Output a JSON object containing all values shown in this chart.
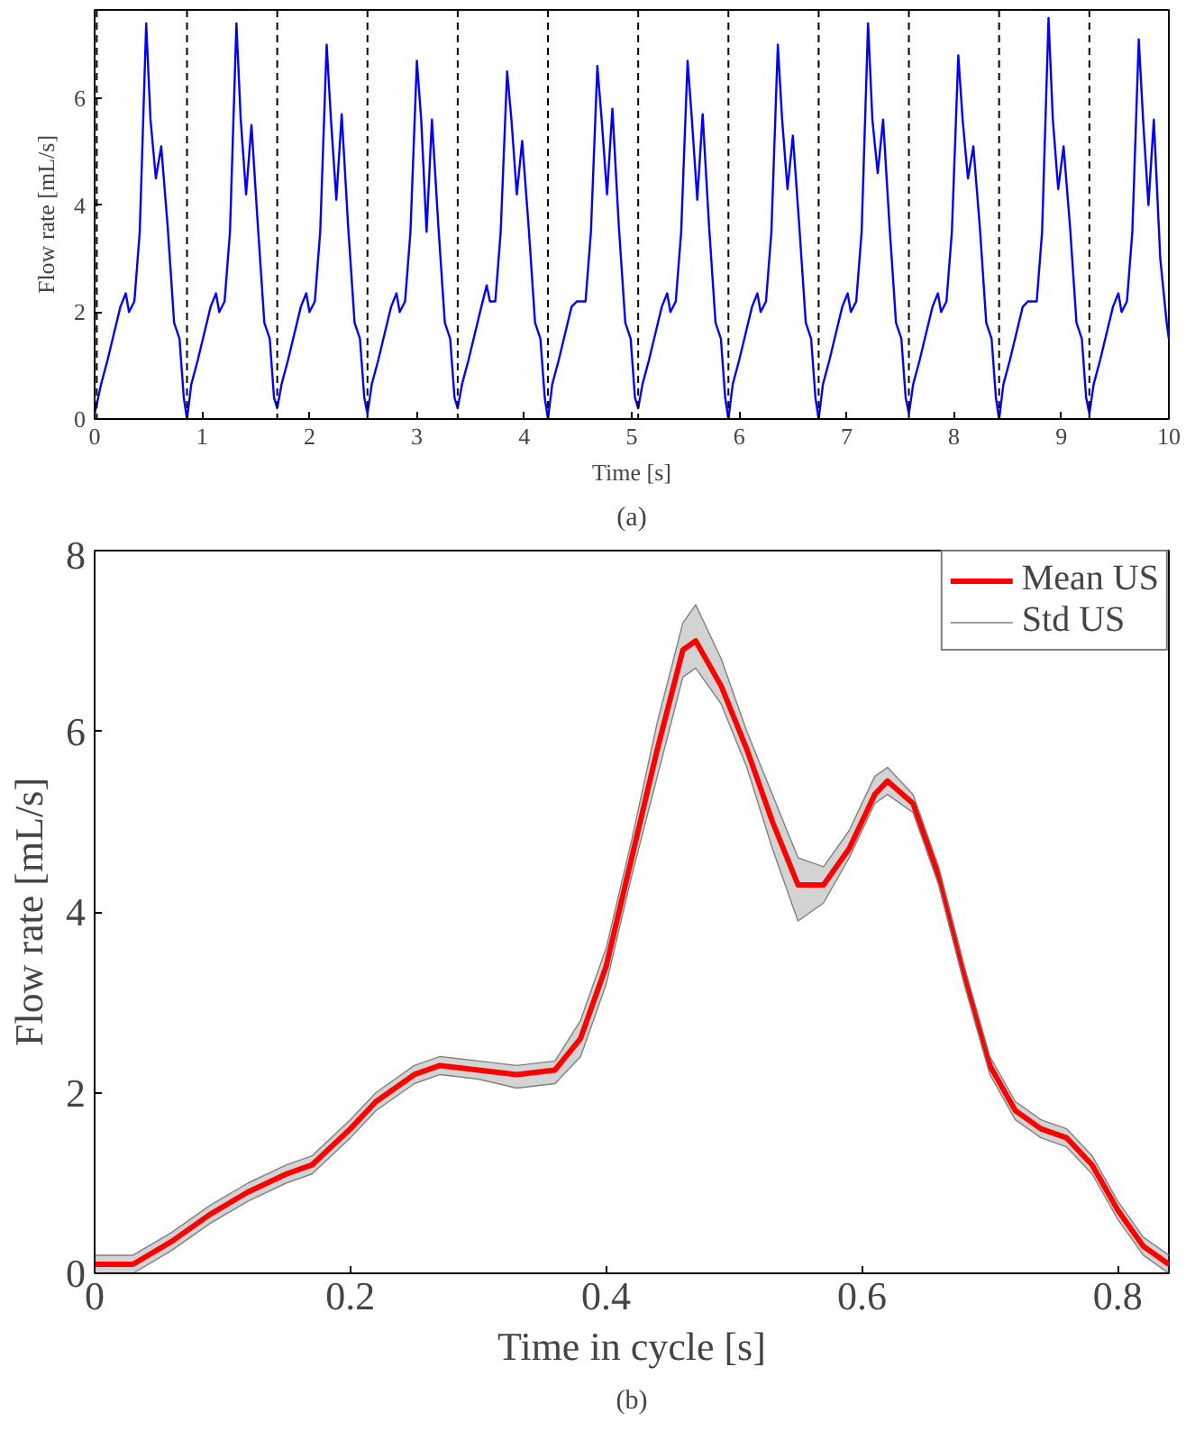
{
  "chart_data": [
    {
      "type": "line",
      "xlabel": "Time [s]",
      "ylabel": "Flow rate [mL/s]",
      "xlim": [
        0,
        10
      ],
      "ylim": [
        0,
        7.65
      ],
      "xticks": [
        0,
        1,
        2,
        3,
        4,
        5,
        6,
        7,
        8,
        9,
        10
      ],
      "yticks": [
        0,
        2,
        4,
        6
      ],
      "grid": false,
      "legend": false,
      "annotations": [
        "(a)"
      ],
      "ref_lines": [
        {
          "axis": "x",
          "value": 0.02,
          "line_style": "dashed",
          "color": "#000000"
        },
        {
          "axis": "x",
          "value": 0.86,
          "line_style": "dashed",
          "color": "#000000"
        },
        {
          "axis": "x",
          "value": 1.7,
          "line_style": "dashed",
          "color": "#000000"
        },
        {
          "axis": "x",
          "value": 2.54,
          "line_style": "dashed",
          "color": "#000000"
        },
        {
          "axis": "x",
          "value": 3.38,
          "line_style": "dashed",
          "color": "#000000"
        },
        {
          "axis": "x",
          "value": 4.22,
          "line_style": "dashed",
          "color": "#000000"
        },
        {
          "axis": "x",
          "value": 5.06,
          "line_style": "dashed",
          "color": "#000000"
        },
        {
          "axis": "x",
          "value": 5.9,
          "line_style": "dashed",
          "color": "#000000"
        },
        {
          "axis": "x",
          "value": 6.74,
          "line_style": "dashed",
          "color": "#000000"
        },
        {
          "axis": "x",
          "value": 7.58,
          "line_style": "dashed",
          "color": "#000000"
        },
        {
          "axis": "x",
          "value": 8.42,
          "line_style": "dashed",
          "color": "#000000"
        },
        {
          "axis": "x",
          "value": 9.26,
          "line_style": "dashed",
          "color": "#000000"
        }
      ],
      "series": [
        {
          "color": "#0000ff",
          "x": [
            0,
            0.06,
            0.12,
            0.18,
            0.24,
            0.29,
            0.32,
            0.37,
            0.42,
            0.48,
            0.52,
            0.57,
            0.62,
            0.68,
            0.74,
            0.79,
            0.83,
            0.86,
            0.9,
            0.96,
            1.02,
            1.08,
            1.13,
            1.16,
            1.21,
            1.26,
            1.32,
            1.36,
            1.41,
            1.46,
            1.52,
            1.58,
            1.63,
            1.67,
            1.7,
            1.74,
            1.8,
            1.86,
            1.92,
            1.97,
            2.0,
            2.05,
            2.1,
            2.16,
            2.2,
            2.25,
            2.3,
            2.36,
            2.42,
            2.47,
            2.51,
            2.54,
            2.58,
            2.64,
            2.7,
            2.76,
            2.81,
            2.84,
            2.89,
            2.94,
            3.0,
            3.04,
            3.09,
            3.14,
            3.2,
            3.26,
            3.31,
            3.35,
            3.38,
            3.42,
            3.48,
            3.54,
            3.6,
            3.65,
            3.68,
            3.73,
            3.78,
            3.84,
            3.88,
            3.93,
            3.98,
            4.04,
            4.1,
            4.15,
            4.19,
            4.22,
            4.26,
            4.32,
            4.38,
            4.44,
            4.49,
            4.52,
            4.57,
            4.62,
            4.68,
            4.72,
            4.77,
            4.82,
            4.88,
            4.94,
            4.99,
            5.03,
            5.06,
            5.1,
            5.16,
            5.22,
            5.28,
            5.33,
            5.36,
            5.41,
            5.46,
            5.52,
            5.56,
            5.61,
            5.66,
            5.72,
            5.78,
            5.83,
            5.87,
            5.9,
            5.94,
            6.0,
            6.06,
            6.12,
            6.17,
            6.2,
            6.25,
            6.3,
            6.36,
            6.4,
            6.45,
            6.5,
            6.56,
            6.62,
            6.67,
            6.71,
            6.74,
            6.78,
            6.84,
            6.9,
            6.96,
            7.01,
            7.04,
            7.09,
            7.14,
            7.2,
            7.24,
            7.29,
            7.34,
            7.4,
            7.46,
            7.51,
            7.55,
            7.58,
            7.62,
            7.68,
            7.74,
            7.8,
            7.85,
            7.88,
            7.93,
            7.98,
            8.04,
            8.08,
            8.13,
            8.18,
            8.24,
            8.3,
            8.35,
            8.39,
            8.42,
            8.46,
            8.52,
            8.58,
            8.64,
            8.69,
            8.72,
            8.77,
            8.82,
            8.88,
            8.92,
            8.97,
            9.02,
            9.08,
            9.14,
            9.19,
            9.23,
            9.26,
            9.3,
            9.36,
            9.42,
            9.48,
            9.53,
            9.56,
            9.61,
            9.66,
            9.72,
            9.76,
            9.81,
            9.86,
            9.92,
            9.98,
            10.0
          ],
          "values": [
            0.1,
            0.65,
            1.1,
            1.6,
            2.1,
            2.35,
            2.0,
            2.2,
            3.5,
            7.4,
            5.6,
            4.5,
            5.1,
            3.6,
            1.8,
            1.5,
            0.4,
            0.0,
            0.65,
            1.1,
            1.6,
            2.1,
            2.35,
            2.0,
            2.2,
            3.5,
            7.4,
            5.6,
            4.2,
            5.5,
            3.6,
            1.8,
            1.5,
            0.4,
            0.2,
            0.65,
            1.1,
            1.6,
            2.1,
            2.35,
            2.0,
            2.2,
            3.5,
            7.0,
            5.6,
            4.1,
            5.7,
            3.6,
            1.8,
            1.5,
            0.4,
            0.1,
            0.65,
            1.1,
            1.6,
            2.1,
            2.35,
            2.0,
            2.2,
            3.5,
            6.7,
            5.6,
            3.5,
            5.6,
            3.6,
            1.8,
            1.5,
            0.4,
            0.2,
            0.65,
            1.1,
            1.6,
            2.1,
            2.5,
            2.2,
            2.2,
            3.5,
            6.5,
            5.6,
            4.2,
            5.2,
            3.6,
            1.8,
            1.5,
            0.4,
            0.0,
            0.65,
            1.1,
            1.6,
            2.1,
            2.2,
            2.2,
            2.2,
            3.5,
            6.6,
            5.6,
            4.2,
            5.8,
            3.6,
            1.8,
            1.5,
            0.4,
            0.2,
            0.65,
            1.1,
            1.6,
            2.1,
            2.35,
            2.0,
            2.2,
            3.5,
            6.7,
            5.6,
            4.1,
            5.7,
            3.6,
            1.8,
            1.5,
            0.4,
            0.0,
            0.65,
            1.1,
            1.6,
            2.1,
            2.35,
            2.0,
            2.2,
            3.5,
            7.0,
            5.6,
            4.3,
            5.3,
            3.6,
            1.8,
            1.5,
            0.4,
            0.0,
            0.65,
            1.1,
            1.6,
            2.1,
            2.35,
            2.0,
            2.2,
            3.5,
            7.4,
            5.6,
            4.6,
            5.6,
            3.6,
            1.8,
            1.5,
            0.4,
            0.1,
            0.65,
            1.1,
            1.6,
            2.1,
            2.35,
            2.0,
            2.2,
            3.5,
            6.8,
            5.6,
            4.5,
            5.1,
            3.6,
            1.8,
            1.5,
            0.4,
            0.0,
            0.65,
            1.1,
            1.6,
            2.1,
            2.2,
            2.2,
            2.2,
            3.5,
            7.5,
            5.6,
            4.3,
            5.1,
            3.6,
            1.8,
            1.5,
            0.4,
            0.1,
            0.65,
            1.1,
            1.6,
            2.1,
            2.35,
            2.0,
            2.2,
            3.5,
            7.1,
            5.6,
            4.0,
            5.6,
            3.0,
            1.8,
            1.5
          ]
        }
      ]
    },
    {
      "type": "line",
      "xlabel": "Time in cycle [s]",
      "ylabel": "Flow rate [mL/s]",
      "xlim": [
        0,
        0.84
      ],
      "ylim": [
        0,
        8
      ],
      "xticks": [
        0,
        0.2,
        0.4,
        0.6,
        0.8
      ],
      "yticks": [
        0,
        2,
        4,
        6,
        8
      ],
      "grid": false,
      "legend": "top right",
      "annotations": [
        "(b)"
      ],
      "x": [
        0,
        0.03,
        0.06,
        0.09,
        0.12,
        0.15,
        0.17,
        0.2,
        0.22,
        0.25,
        0.27,
        0.3,
        0.33,
        0.36,
        0.38,
        0.4,
        0.42,
        0.44,
        0.46,
        0.47,
        0.49,
        0.51,
        0.53,
        0.55,
        0.57,
        0.59,
        0.61,
        0.62,
        0.64,
        0.66,
        0.68,
        0.7,
        0.72,
        0.74,
        0.76,
        0.78,
        0.8,
        0.82,
        0.84
      ],
      "series": [
        {
          "name": "Mean US",
          "type": "line",
          "color": "#ff0000",
          "values": [
            0.1,
            0.1,
            0.35,
            0.65,
            0.9,
            1.1,
            1.2,
            1.6,
            1.9,
            2.2,
            2.3,
            2.25,
            2.2,
            2.25,
            2.6,
            3.4,
            4.6,
            5.8,
            6.9,
            7.0,
            6.5,
            5.8,
            5.0,
            4.3,
            4.3,
            4.7,
            5.3,
            5.45,
            5.2,
            4.4,
            3.3,
            2.3,
            1.8,
            1.6,
            1.5,
            1.2,
            0.7,
            0.3,
            0.1
          ],
          "lower": [
            0.0,
            0.0,
            0.25,
            0.55,
            0.8,
            1.0,
            1.1,
            1.5,
            1.8,
            2.1,
            2.2,
            2.15,
            2.05,
            2.1,
            2.4,
            3.2,
            4.4,
            5.5,
            6.6,
            6.7,
            6.3,
            5.6,
            4.7,
            3.9,
            4.1,
            4.6,
            5.2,
            5.3,
            5.1,
            4.3,
            3.2,
            2.2,
            1.7,
            1.5,
            1.4,
            1.1,
            0.6,
            0.2,
            0.0
          ],
          "upper": [
            0.2,
            0.2,
            0.45,
            0.75,
            1.0,
            1.2,
            1.3,
            1.7,
            2.0,
            2.3,
            2.4,
            2.35,
            2.3,
            2.35,
            2.8,
            3.6,
            4.8,
            6.1,
            7.2,
            7.4,
            6.8,
            6.0,
            5.3,
            4.6,
            4.5,
            4.9,
            5.5,
            5.6,
            5.3,
            4.5,
            3.4,
            2.4,
            1.9,
            1.7,
            1.6,
            1.3,
            0.8,
            0.4,
            0.2
          ]
        },
        {
          "name": "Std US",
          "type": "line",
          "color": "#808080",
          "values": [
            0.2,
            0.2,
            0.45,
            0.75,
            1.0,
            1.2,
            1.3,
            1.7,
            2.0,
            2.3,
            2.4,
            2.35,
            2.3,
            2.35,
            2.8,
            3.6,
            4.8,
            6.1,
            7.2,
            7.4,
            6.8,
            6.0,
            5.3,
            4.6,
            4.5,
            4.9,
            5.5,
            5.6,
            5.3,
            4.5,
            3.4,
            2.4,
            1.9,
            1.7,
            1.6,
            1.3,
            0.8,
            0.4,
            0.2
          ]
        },
        {
          "type": "line",
          "color": "#808080",
          "values": [
            0.0,
            0.0,
            0.25,
            0.55,
            0.8,
            1.0,
            1.1,
            1.5,
            1.8,
            2.1,
            2.2,
            2.15,
            2.05,
            2.1,
            2.4,
            3.2,
            4.4,
            5.5,
            6.6,
            6.7,
            6.3,
            5.6,
            4.7,
            3.9,
            4.1,
            4.6,
            5.2,
            5.3,
            5.1,
            4.3,
            3.2,
            2.2,
            1.7,
            1.5,
            1.4,
            1.1,
            0.6,
            0.2,
            0.0
          ]
        }
      ]
    }
  ]
}
